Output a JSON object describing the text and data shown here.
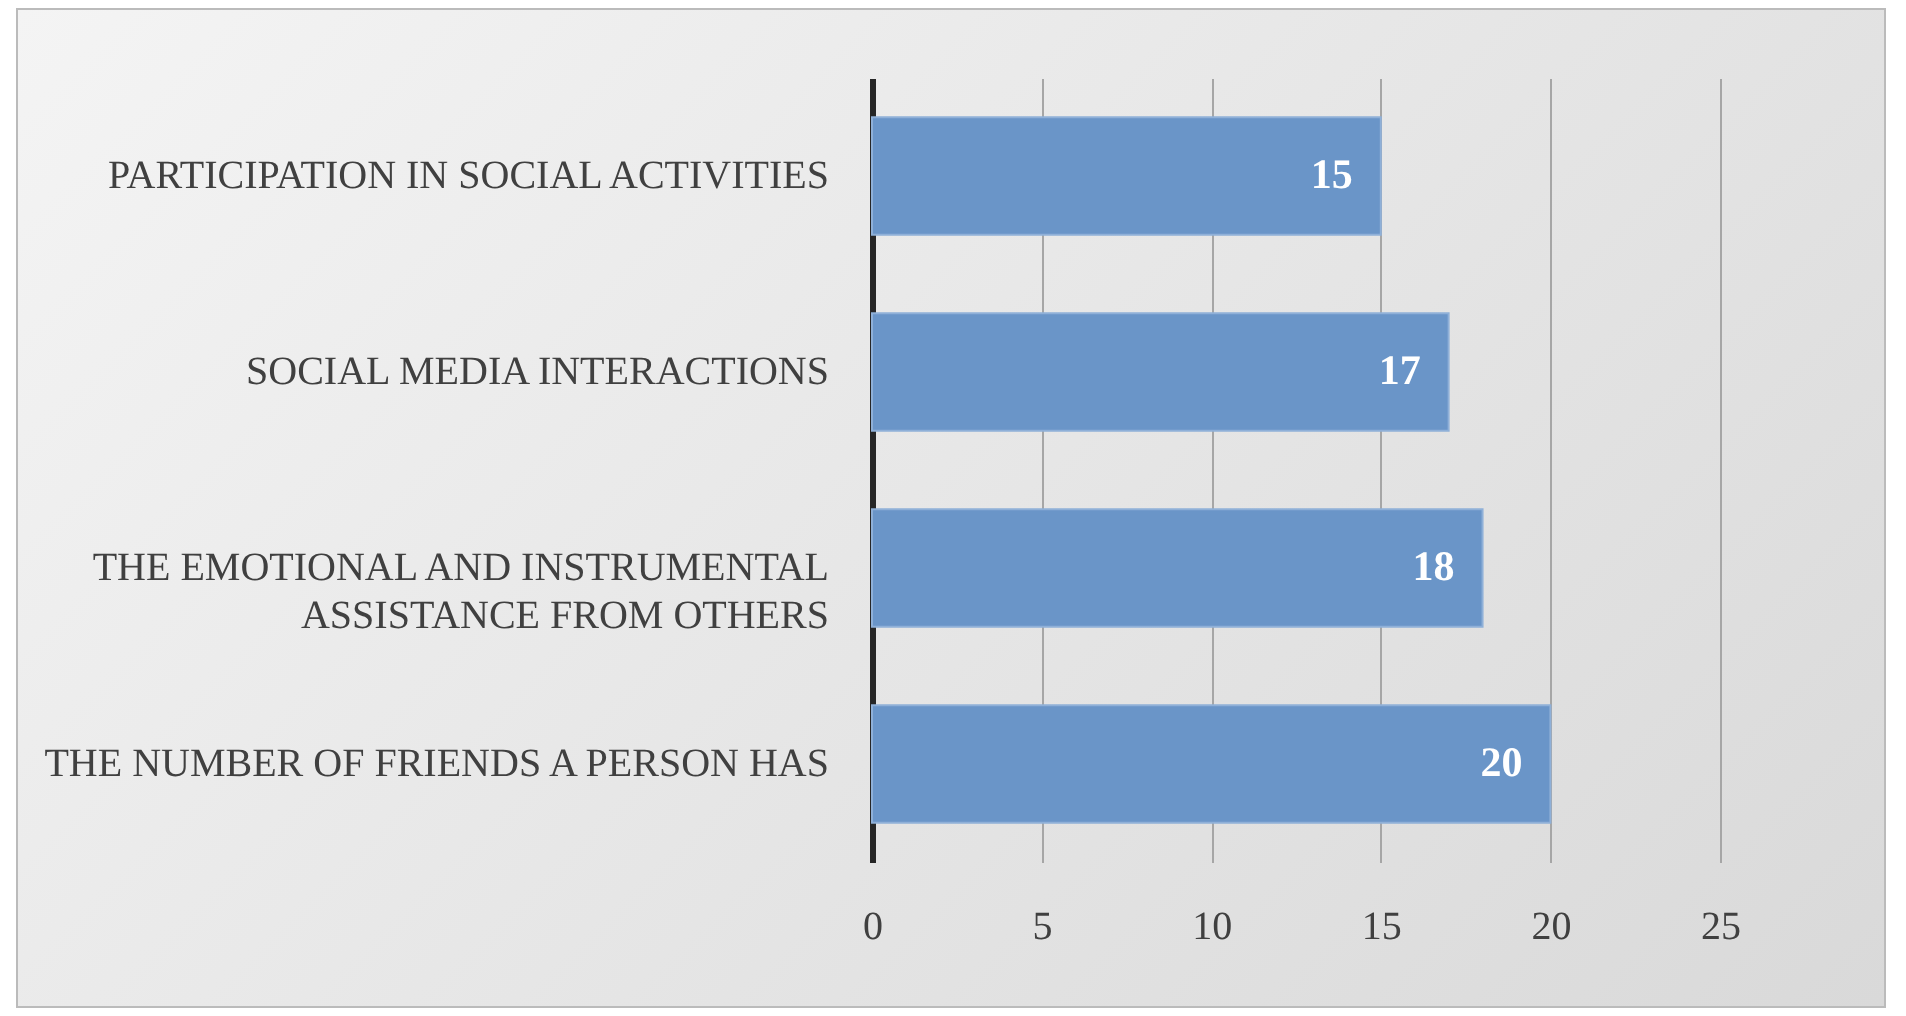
{
  "chart_data": {
    "type": "bar",
    "orientation": "horizontal",
    "categories": [
      "PARTICIPATION IN SOCIAL ACTIVITIES",
      "SOCIAL MEDIA INTERACTIONS",
      "THE EMOTIONAL AND INSTRUMENTAL ASSISTANCE FROM OTHERS",
      "THE NUMBER OF FRIENDS A PERSON HAS"
    ],
    "values": [
      15,
      17,
      18,
      20
    ],
    "color": "#6a95c8",
    "xlim": [
      0,
      25
    ],
    "xticks": [
      0,
      5,
      10,
      15,
      20,
      25
    ],
    "grid": "x",
    "data_labels": true
  }
}
